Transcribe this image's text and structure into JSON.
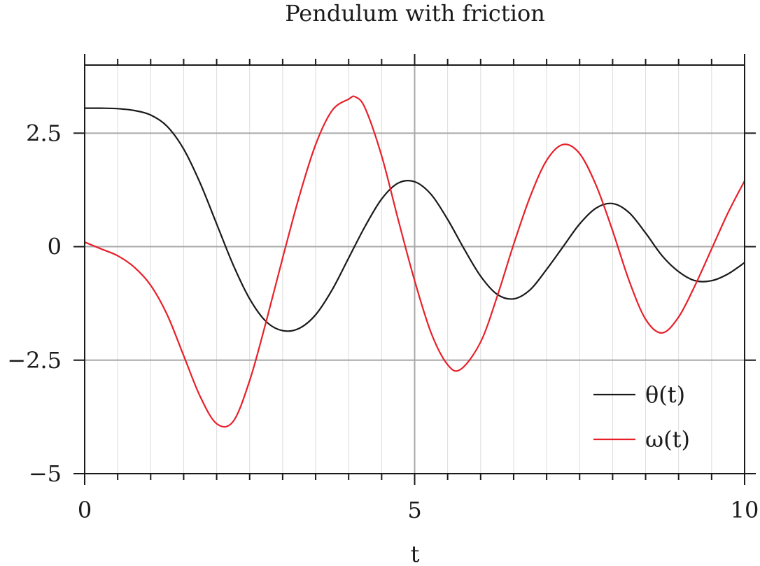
{
  "chart_data": {
    "type": "line",
    "title": "Pendulum with friction",
    "xlabel": "t",
    "ylabel": "",
    "xlim": [
      0,
      10
    ],
    "ylim": [
      -5,
      4
    ],
    "x_ticks": [
      0,
      5,
      10
    ],
    "x_tick_labels": [
      "0",
      "5",
      "10"
    ],
    "y_ticks": [
      -5,
      -2.5,
      0,
      2.5
    ],
    "y_tick_labels": [
      "−5",
      "−2.5",
      "0",
      "2.5"
    ],
    "x_minor_step": 0.5,
    "grid": true,
    "legend_position": "bottom-right",
    "series": [
      {
        "name": "θ(t)",
        "color": "#1a1a1a",
        "x": [
          0,
          0.25,
          0.5,
          0.75,
          1.0,
          1.25,
          1.5,
          1.75,
          2.0,
          2.25,
          2.5,
          2.75,
          3.0,
          3.25,
          3.5,
          3.75,
          4.0,
          4.25,
          4.5,
          4.75,
          5.0,
          5.25,
          5.5,
          5.75,
          6.0,
          6.25,
          6.5,
          6.75,
          7.0,
          7.25,
          7.5,
          7.75,
          8.0,
          8.25,
          8.5,
          8.75,
          9.0,
          9.25,
          9.5,
          9.75,
          10.0
        ],
        "y": [
          3.05,
          3.05,
          3.04,
          3.0,
          2.9,
          2.65,
          2.15,
          1.4,
          0.5,
          -0.4,
          -1.15,
          -1.65,
          -1.85,
          -1.8,
          -1.5,
          -0.95,
          -0.25,
          0.45,
          1.05,
          1.4,
          1.43,
          1.15,
          0.6,
          -0.05,
          -0.65,
          -1.05,
          -1.15,
          -0.95,
          -0.5,
          0.0,
          0.5,
          0.85,
          0.95,
          0.75,
          0.3,
          -0.2,
          -0.55,
          -0.75,
          -0.75,
          -0.6,
          -0.35
        ]
      },
      {
        "name": "ω(t)",
        "color": "#e8202a",
        "x": [
          0,
          0.25,
          0.5,
          0.75,
          1.0,
          1.25,
          1.5,
          1.75,
          2.0,
          2.25,
          2.5,
          2.75,
          3.0,
          3.25,
          3.5,
          3.75,
          4.0,
          4.1,
          4.25,
          4.5,
          4.75,
          5.0,
          5.25,
          5.5,
          5.7,
          6.0,
          6.25,
          6.5,
          6.75,
          7.0,
          7.25,
          7.5,
          7.75,
          8.0,
          8.25,
          8.5,
          8.75,
          9.0,
          9.25,
          9.5,
          9.75,
          10.0
        ],
        "y": [
          0.1,
          -0.05,
          -0.2,
          -0.45,
          -0.85,
          -1.5,
          -2.4,
          -3.3,
          -3.9,
          -3.85,
          -2.95,
          -1.65,
          -0.25,
          1.1,
          2.25,
          3.0,
          3.25,
          3.3,
          3.05,
          2.0,
          0.6,
          -0.75,
          -1.9,
          -2.6,
          -2.7,
          -2.1,
          -1.1,
          0.05,
          1.1,
          1.9,
          2.25,
          2.05,
          1.35,
          0.35,
          -0.75,
          -1.6,
          -1.9,
          -1.55,
          -0.85,
          -0.05,
          0.75,
          1.45
        ]
      }
    ]
  }
}
